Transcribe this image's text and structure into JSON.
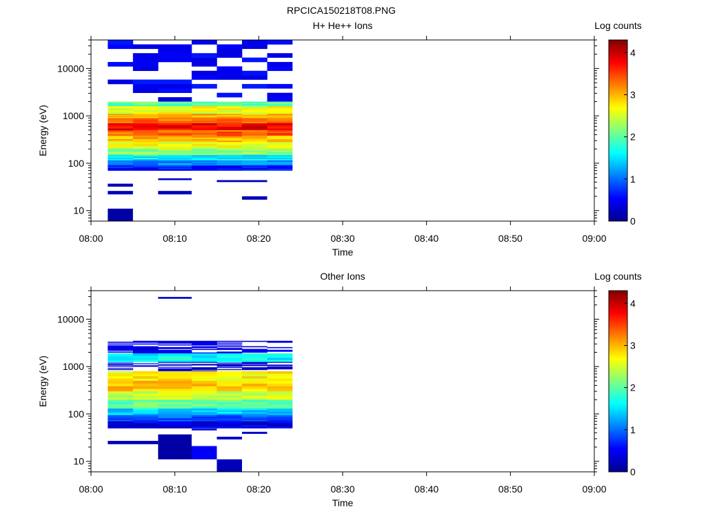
{
  "figure": {
    "title": "RPCICA150218T08.PNG"
  },
  "colorscale": [
    "#00008f",
    "#0000ff",
    "#0080ff",
    "#00ffff",
    "#80ff80",
    "#ffff00",
    "#ff8000",
    "#ff0000",
    "#800000"
  ],
  "chart_data": [
    {
      "type": "heatmap",
      "title": "H+ He++ Ions",
      "xlabel": "Time",
      "ylabel": "Energy (eV)",
      "x_ticks": [
        "08:00",
        "08:10",
        "08:20",
        "08:30",
        "08:40",
        "08:50",
        "09:00"
      ],
      "xlim": [
        "08:00",
        "09:00"
      ],
      "y_scale": "log",
      "y_ticks": [
        "10",
        "100",
        "1000",
        "10000"
      ],
      "ylim": [
        6,
        40000
      ],
      "colorbar": {
        "label": "Log counts",
        "range": [
          0,
          4.3
        ],
        "ticks": [
          "0",
          "1",
          "2",
          "3",
          "4"
        ]
      },
      "time_columns": [
        "08:02",
        "08:05",
        "08:08",
        "08:12",
        "08:15",
        "08:18",
        "08:21"
      ],
      "bands": [
        {
          "lo": 2000,
          "hi": 40000,
          "value": 0.4,
          "pattern": "sparse"
        },
        {
          "lo": 1600,
          "hi": 2000,
          "value": 2.0
        },
        {
          "lo": 1100,
          "hi": 1600,
          "value": 2.6
        },
        {
          "lo": 900,
          "hi": 1100,
          "value": 3.0
        },
        {
          "lo": 700,
          "hi": 900,
          "value": 3.3
        },
        {
          "lo": 500,
          "hi": 700,
          "value": 3.8
        },
        {
          "lo": 380,
          "hi": 500,
          "value": 3.4
        },
        {
          "lo": 280,
          "hi": 380,
          "value": 3.0
        },
        {
          "lo": 200,
          "hi": 280,
          "value": 2.6
        },
        {
          "lo": 150,
          "hi": 200,
          "value": 2.2
        },
        {
          "lo": 115,
          "hi": 150,
          "value": 1.6
        },
        {
          "lo": 90,
          "hi": 115,
          "value": 1.1
        },
        {
          "lo": 70,
          "hi": 90,
          "value": 0.6
        }
      ],
      "low_energy_patches": [
        {
          "t0": "08:02",
          "t1": "08:05",
          "lo": 6,
          "hi": 11,
          "value": 0.1
        },
        {
          "t0": "08:02",
          "t1": "08:05",
          "lo": 22,
          "hi": 26,
          "value": 0.2
        },
        {
          "t0": "08:02",
          "t1": "08:05",
          "lo": 32,
          "hi": 37,
          "value": 0.2
        },
        {
          "t0": "08:08",
          "t1": "08:12",
          "lo": 22,
          "hi": 26,
          "value": 0.2
        },
        {
          "t0": "08:08",
          "t1": "08:12",
          "lo": 44,
          "hi": 48,
          "value": 0.3
        },
        {
          "t0": "08:15",
          "t1": "08:18",
          "lo": 40,
          "hi": 44,
          "value": 0.2
        },
        {
          "t0": "08:18",
          "t1": "08:21",
          "lo": 17,
          "hi": 20,
          "value": 0.2
        },
        {
          "t0": "08:18",
          "t1": "08:21",
          "lo": 40,
          "hi": 44,
          "value": 0.2
        }
      ]
    },
    {
      "type": "heatmap",
      "title": "Other Ions",
      "xlabel": "Time",
      "ylabel": "Energy (eV)",
      "x_ticks": [
        "08:00",
        "08:10",
        "08:20",
        "08:30",
        "08:40",
        "08:50",
        "09:00"
      ],
      "xlim": [
        "08:00",
        "09:00"
      ],
      "y_scale": "log",
      "y_ticks": [
        "10",
        "100",
        "1000",
        "10000"
      ],
      "ylim": [
        6,
        40000
      ],
      "colorbar": {
        "label": "Log counts",
        "range": [
          0,
          4.3
        ],
        "ticks": [
          "0",
          "1",
          "2",
          "3",
          "4"
        ]
      },
      "time_columns": [
        "08:02",
        "08:05",
        "08:08",
        "08:12",
        "08:15",
        "08:18",
        "08:21"
      ],
      "bands": [
        {
          "lo": 1900,
          "hi": 3500,
          "value": 0.3,
          "pattern": "sparse"
        },
        {
          "lo": 1250,
          "hi": 1900,
          "value": 1.6
        },
        {
          "lo": 800,
          "hi": 1250,
          "value": 0.2,
          "pattern": "sparse"
        },
        {
          "lo": 500,
          "hi": 800,
          "value": 2.7
        },
        {
          "lo": 300,
          "hi": 500,
          "value": 2.9
        },
        {
          "lo": 200,
          "hi": 300,
          "value": 2.5
        },
        {
          "lo": 130,
          "hi": 200,
          "value": 2.0
        },
        {
          "lo": 95,
          "hi": 130,
          "value": 1.4
        },
        {
          "lo": 70,
          "hi": 95,
          "value": 0.9
        },
        {
          "lo": 50,
          "hi": 70,
          "value": 0.4
        }
      ],
      "low_energy_patches": [
        {
          "t0": "08:08",
          "t1": "08:12",
          "lo": 27000,
          "hi": 29500,
          "value": 0.3
        },
        {
          "t0": "08:02",
          "t1": "08:08",
          "lo": 23,
          "hi": 27,
          "value": 0.2
        },
        {
          "t0": "08:08",
          "t1": "08:12",
          "lo": 11,
          "hi": 37,
          "value": 0.1
        },
        {
          "t0": "08:12",
          "t1": "08:15",
          "lo": 11,
          "hi": 21,
          "value": 0.5
        },
        {
          "t0": "08:15",
          "t1": "08:18",
          "lo": 6,
          "hi": 11,
          "value": 0.2
        },
        {
          "t0": "08:15",
          "t1": "08:18",
          "lo": 29,
          "hi": 33,
          "value": 0.3
        },
        {
          "t0": "08:18",
          "t1": "08:21",
          "lo": 38,
          "hi": 42,
          "value": 0.3
        },
        {
          "t0": "08:12",
          "t1": "08:15",
          "lo": 45,
          "hi": 49,
          "value": 0.3
        }
      ]
    }
  ]
}
